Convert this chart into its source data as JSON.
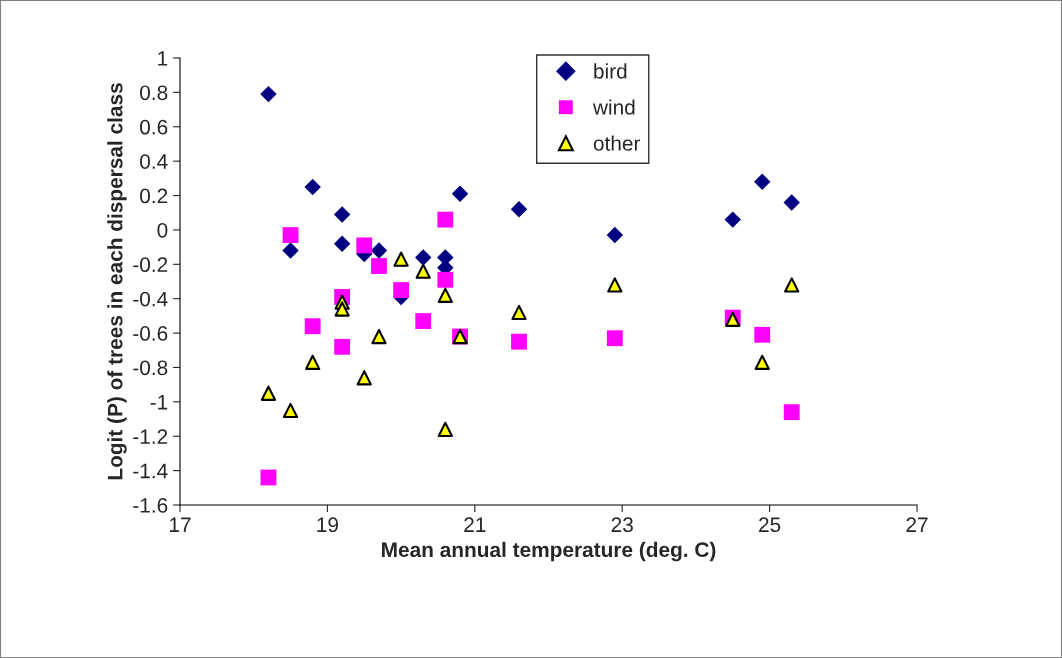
{
  "chart_data": {
    "type": "scatter",
    "xlabel": "Mean annual temperature (deg. C)",
    "ylabel": "Logit (P) of trees in each dispersal class",
    "x": [
      18.2,
      18.5,
      18.8,
      19.2,
      19.2,
      19.5,
      19.7,
      20.0,
      20.3,
      20.6,
      20.6,
      20.8,
      21.6,
      22.9,
      24.5,
      24.9,
      25.3
    ],
    "series": [
      {
        "name": "bird",
        "color": "#000080",
        "marker": "diamond",
        "values": [
          0.79,
          -0.12,
          0.25,
          0.09,
          -0.08,
          -0.14,
          -0.12,
          -0.39,
          -0.16,
          -0.16,
          -0.22,
          0.21,
          0.12,
          -0.03,
          0.06,
          0.28,
          0.16
        ]
      },
      {
        "name": "wind",
        "color": "#ff00ff",
        "marker": "square",
        "values": [
          -1.44,
          -0.03,
          -0.56,
          -0.39,
          -0.68,
          -0.09,
          -0.21,
          -0.35,
          -0.53,
          0.06,
          -0.29,
          -0.62,
          -0.65,
          -0.63,
          -0.51,
          -0.61,
          -1.06
        ]
      },
      {
        "name": "other",
        "color": "#ffff00",
        "marker": "triangle",
        "values": [
          -0.95,
          -1.05,
          -0.77,
          -0.42,
          -0.46,
          -0.86,
          -0.62,
          -0.17,
          -0.24,
          -0.38,
          -1.16,
          -0.62,
          -0.48,
          -0.32,
          -0.52,
          -0.77,
          -0.32
        ]
      }
    ],
    "xlim": [
      17,
      27
    ],
    "xticks": [
      17,
      19,
      21,
      23,
      25,
      27
    ],
    "ylim": [
      -1.6,
      1
    ],
    "yticks": [
      -1.6,
      -1.4,
      -1.2,
      -1,
      -0.8,
      -0.6,
      -0.4,
      -0.2,
      0,
      0.2,
      0.4,
      0.6,
      0.8,
      1
    ],
    "grid": false,
    "legend": "top"
  }
}
